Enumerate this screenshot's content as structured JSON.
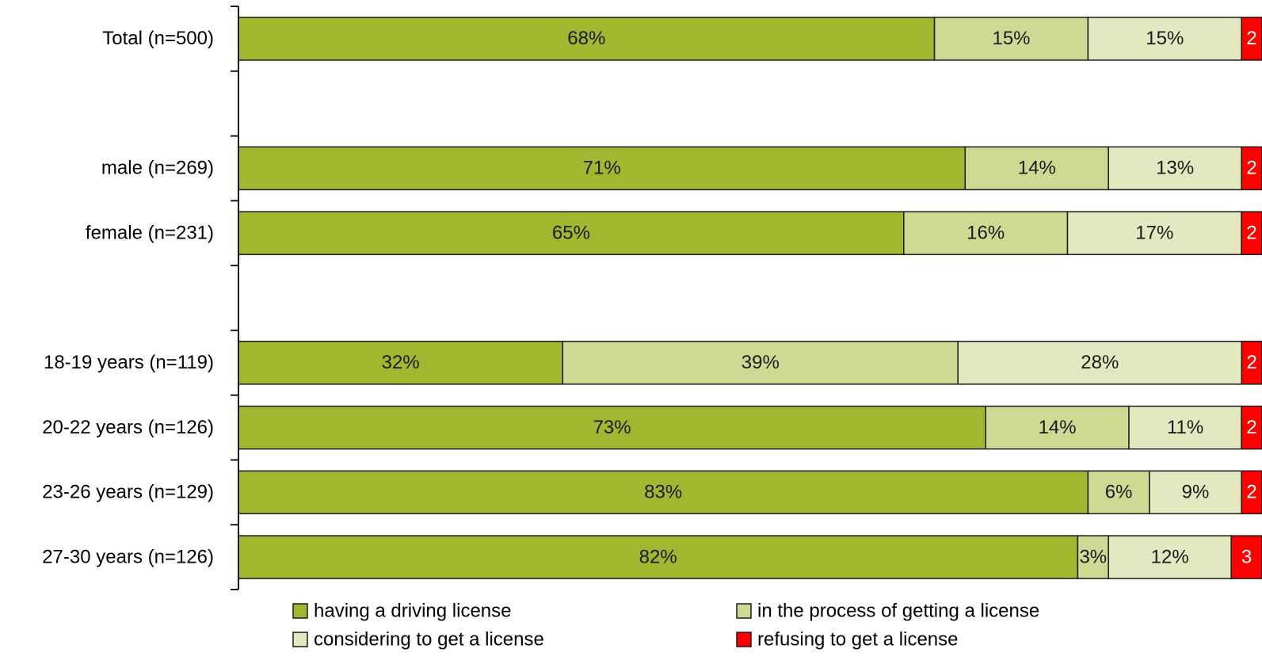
{
  "chart_data": {
    "type": "bar",
    "orientation": "horizontal",
    "stacked": "percent",
    "categories": [
      "Total (n=500)",
      "",
      "male (n=269)",
      "female (n=231)",
      "",
      "18-19 years (n=119)",
      "20-22 years (n=126)",
      "23-26 years (n=129)",
      "27-30 years (n=126)"
    ],
    "series": [
      {
        "name": "having a driving license",
        "color": "#A2B62F",
        "values": [
          68,
          null,
          71,
          65,
          null,
          32,
          73,
          83,
          82
        ],
        "labels": [
          "68%",
          "",
          "71%",
          "65%",
          "",
          "32%",
          "73%",
          "83%",
          "82%"
        ],
        "label_color": "#1a1a1a"
      },
      {
        "name": "in the process of getting a license",
        "color": "#CFD994",
        "values": [
          15,
          null,
          14,
          16,
          null,
          39,
          14,
          6,
          3
        ],
        "labels": [
          "15%",
          "",
          "14%",
          "16%",
          "",
          "39%",
          "14%",
          "6%",
          "3%"
        ],
        "label_color": "#1a1a1a"
      },
      {
        "name": "considering to get a license",
        "color": "#E3E8C0",
        "values": [
          15,
          null,
          13,
          17,
          null,
          28,
          11,
          9,
          12
        ],
        "labels": [
          "15%",
          "",
          "13%",
          "17%",
          "",
          "28%",
          "11%",
          "9%",
          "12%"
        ],
        "label_color": "#1a1a1a"
      },
      {
        "name": "refusing to get a license",
        "color": "#FF0000",
        "values": [
          2,
          null,
          2,
          2,
          null,
          2,
          2,
          2,
          3
        ],
        "labels": [
          "2",
          "",
          "2",
          "2",
          "",
          "2",
          "2",
          "2",
          "3"
        ],
        "label_color": "#ffffff"
      }
    ],
    "xlim": [
      0,
      100
    ],
    "grid": false,
    "legend_position": "bottom"
  }
}
